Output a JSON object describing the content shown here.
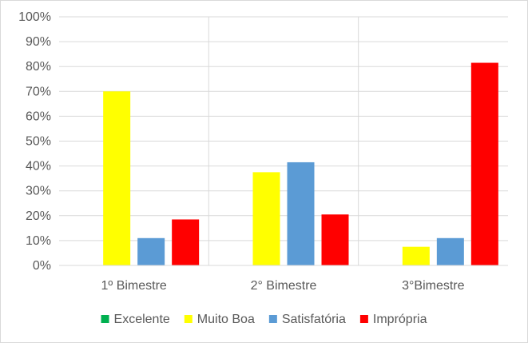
{
  "chart_data": {
    "type": "bar",
    "categories": [
      "1º Bimestre",
      "2° Bimestre",
      "3°Bimestre"
    ],
    "series": [
      {
        "name": "Excelente",
        "color": "#00b050",
        "values": [
          0,
          0,
          0
        ]
      },
      {
        "name": "Muito Boa",
        "color": "#ffff00",
        "values": [
          70,
          37.5,
          7.5
        ]
      },
      {
        "name": "Satisfatória",
        "color": "#5b9bd5",
        "values": [
          11,
          41.5,
          11
        ]
      },
      {
        "name": "Imprópria",
        "color": "#ff0000",
        "values": [
          18.5,
          20.5,
          81.5
        ]
      }
    ],
    "ylim": [
      0,
      100
    ],
    "ytick_step": 10,
    "ytick_labels": [
      "0%",
      "10%",
      "20%",
      "30%",
      "40%",
      "50%",
      "60%",
      "70%",
      "80%",
      "90%",
      "100%"
    ],
    "title": "",
    "xlabel": "",
    "ylabel": "",
    "grid": true,
    "category_dividers": true,
    "legend_position": "bottom"
  }
}
